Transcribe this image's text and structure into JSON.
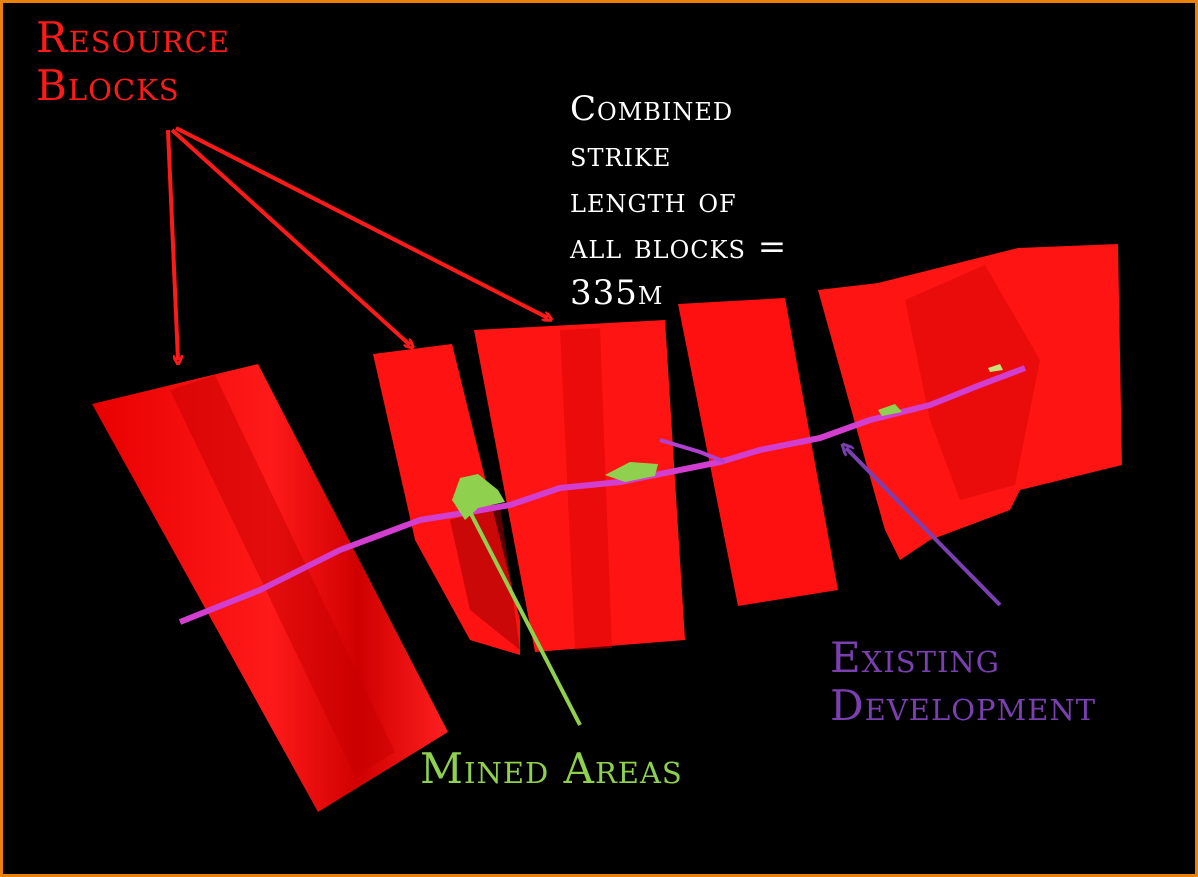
{
  "labels": {
    "resource_blocks": [
      "Resource",
      "Blocks"
    ],
    "strike_length": [
      "Combined",
      "strike",
      "length of",
      "all blocks =",
      "335m"
    ],
    "mined_areas": "Mined Areas",
    "existing_development": [
      "Existing",
      "Development"
    ]
  },
  "colors": {
    "frame": "#e8820c",
    "resource_blocks": "#ff1a1a",
    "mined_areas": "#8fd14f",
    "existing_development": "#7a3fb0",
    "strike_text": "#ffffff"
  }
}
